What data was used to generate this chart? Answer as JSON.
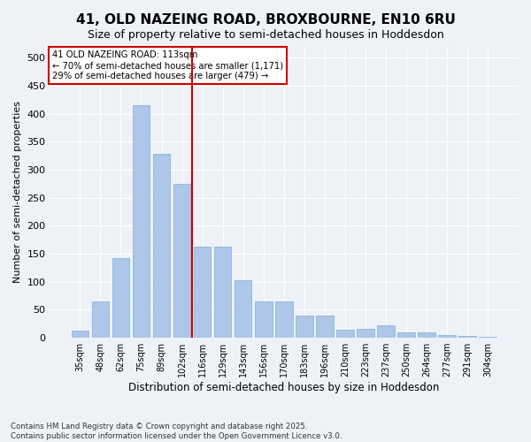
{
  "title": "41, OLD NAZEING ROAD, BROXBOURNE, EN10 6RU",
  "subtitle": "Size of property relative to semi-detached houses in Hoddesdon",
  "xlabel": "Distribution of semi-detached houses by size in Hoddesdon",
  "ylabel": "Number of semi-detached properties",
  "categories": [
    "35sqm",
    "48sqm",
    "62sqm",
    "75sqm",
    "89sqm",
    "102sqm",
    "116sqm",
    "129sqm",
    "143sqm",
    "156sqm",
    "170sqm",
    "183sqm",
    "196sqm",
    "210sqm",
    "223sqm",
    "237sqm",
    "250sqm",
    "264sqm",
    "277sqm",
    "291sqm",
    "304sqm"
  ],
  "values": [
    13,
    65,
    142,
    415,
    328,
    275,
    163,
    163,
    103,
    65,
    65,
    40,
    40,
    14,
    16,
    23,
    9,
    9,
    5,
    3,
    2
  ],
  "bar_color": "#aec6e8",
  "bar_edge_color": "#7aaedc",
  "marker_bin_index": 6,
  "marker_label": "41 OLD NAZEING ROAD: 113sqm",
  "marker_smaller": "← 70% of semi-detached houses are smaller (1,171)",
  "marker_larger": "29% of semi-detached houses are larger (479) →",
  "marker_color": "#cc0000",
  "bg_color": "#eef2f7",
  "grid_color": "#ffffff",
  "footnote": "Contains HM Land Registry data © Crown copyright and database right 2025.\nContains public sector information licensed under the Open Government Licence v3.0.",
  "ylim": [
    0,
    520
  ],
  "yticks": [
    0,
    50,
    100,
    150,
    200,
    250,
    300,
    350,
    400,
    450,
    500
  ]
}
